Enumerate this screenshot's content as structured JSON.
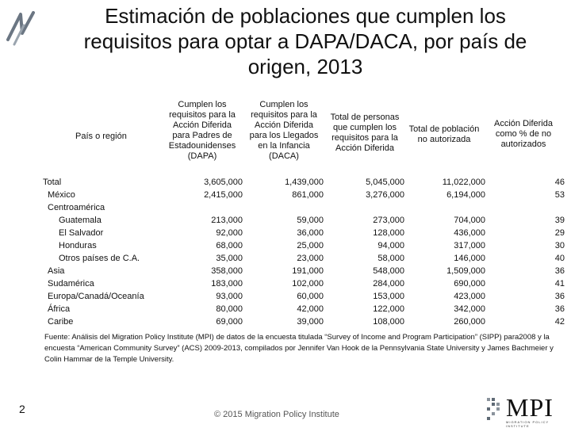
{
  "title": {
    "lines": [
      "Estimación de poblaciones que cumplen los",
      "requisitos para optar a DAPA/DACA, por país de",
      "origen, 2013"
    ]
  },
  "table": {
    "country_header": "País o región",
    "columns": [
      [
        "Cumplen los",
        "requisitos para la",
        "Acción Diferida",
        "para Padres de",
        "Estadounidenses",
        "(DAPA)"
      ],
      [
        "Cumplen los",
        "requisitos para la",
        "Acción Diferida",
        "para los Llegados",
        "en la Infancia",
        "(DACA)"
      ],
      [
        "Total de personas",
        "que cumplen los",
        "requisitos para la",
        "Acción Diferida"
      ],
      [
        "Total de población",
        "no autorizada"
      ],
      [
        "Acción Diferida",
        "como % de no",
        "autorizados"
      ]
    ],
    "rows": [
      {
        "label": "Total",
        "values": [
          "3,605,000",
          "1,439,000",
          "5,045,000",
          "11,022,000",
          "46"
        ]
      },
      {
        "label": "México",
        "values": [
          "2,415,000",
          "861,000",
          "3,276,000",
          "6,194,000",
          "53"
        ]
      },
      {
        "label": "Centroamérica",
        "values": [
          "",
          "",
          "",
          "",
          ""
        ]
      },
      {
        "label": "Guatemala",
        "values": [
          "213,000",
          "59,000",
          "273,000",
          "704,000",
          "39"
        ]
      },
      {
        "label": "El Salvador",
        "values": [
          "92,000",
          "36,000",
          "128,000",
          "436,000",
          "29"
        ]
      },
      {
        "label": "Honduras",
        "values": [
          "68,000",
          "25,000",
          "94,000",
          "317,000",
          "30"
        ]
      },
      {
        "label": "Otros países de C.A.",
        "values": [
          "35,000",
          "23,000",
          "58,000",
          "146,000",
          "40"
        ]
      },
      {
        "label": "Asia",
        "values": [
          "358,000",
          "191,000",
          "548,000",
          "1,509,000",
          "36"
        ]
      },
      {
        "label": "Sudamérica",
        "values": [
          "183,000",
          "102,000",
          "284,000",
          "690,000",
          "41"
        ]
      },
      {
        "label": "Europa/Canadá/Oceanía",
        "values": [
          "93,000",
          "60,000",
          "153,000",
          "423,000",
          "36"
        ]
      },
      {
        "label": "África",
        "values": [
          "80,000",
          "42,000",
          "122,000",
          "342,000",
          "36"
        ]
      },
      {
        "label": "Caribe",
        "values": [
          "69,000",
          "39,000",
          "108,000",
          "260,000",
          "42"
        ]
      }
    ]
  },
  "source_note": "Fuente: Análisis del Migration Policy Institute (MPI) de datos de la encuesta titulada “Survey of Income and Program Participation” (SIPP) para2008 y la encuesta “American Community Survey” (ACS) 2009-2013, compilados por Jennifer Van Hook de la Pennsylvania State University y James Bachmeier y Colin Hammar de la Temple University.",
  "footer": {
    "page_number": "2",
    "copyright": "© 2015 Migration Policy Institute",
    "logo_text": "MPI",
    "logo_subtext": "MIGRATION POLICY INSTITUTE"
  }
}
